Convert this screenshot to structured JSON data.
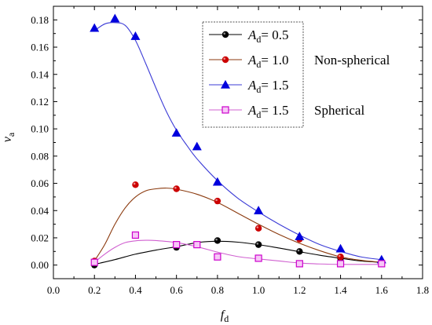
{
  "chart_data": {
    "type": "scatter",
    "title": "",
    "xlabel": {
      "main": "f",
      "sub": "d"
    },
    "ylabel": {
      "main": "v",
      "sub": "a"
    },
    "xlim": [
      0.0,
      1.8
    ],
    "ylim": [
      -0.01,
      0.19
    ],
    "x_ticks": [
      "0.0",
      "0.2",
      "0.4",
      "0.6",
      "0.8",
      "1.0",
      "1.2",
      "1.4",
      "1.6",
      "1.8"
    ],
    "y_ticks": [
      "0.00",
      "0.02",
      "0.04",
      "0.06",
      "0.08",
      "0.10",
      "0.12",
      "0.14",
      "0.16",
      "0.18"
    ],
    "grid": false,
    "legend_position": "top-right",
    "series": [
      {
        "name": "A_d = 0.5",
        "legend_var": "A",
        "legend_sub": "d",
        "legend_value": "= 0.5",
        "marker": "circle",
        "color": "#000000",
        "marker_fill": "#000000",
        "line_color": "#000000",
        "x": [
          0.2,
          0.6,
          0.8,
          1.0,
          1.2,
          1.4,
          1.6
        ],
        "y": [
          0.0,
          0.013,
          0.018,
          0.015,
          0.01,
          0.005,
          0.002
        ],
        "curve": [
          [
            0.2,
            0.0005
          ],
          [
            0.3,
            0.004
          ],
          [
            0.4,
            0.008
          ],
          [
            0.5,
            0.011
          ],
          [
            0.6,
            0.0135
          ],
          [
            0.7,
            0.0165
          ],
          [
            0.8,
            0.0175
          ],
          [
            0.9,
            0.0168
          ],
          [
            1.0,
            0.015
          ],
          [
            1.1,
            0.0125
          ],
          [
            1.2,
            0.0098
          ],
          [
            1.3,
            0.0072
          ],
          [
            1.4,
            0.005
          ],
          [
            1.5,
            0.003
          ],
          [
            1.6,
            0.002
          ]
        ]
      },
      {
        "name": "A_d = 1.0",
        "legend_var": "A",
        "legend_sub": "d",
        "legend_value": "= 1.0",
        "group_label": "Non-spherical",
        "marker": "circle",
        "color": "#cc0000",
        "marker_fill": "#cc0000",
        "line_color": "#8b3a0e",
        "x": [
          0.2,
          0.4,
          0.6,
          0.8,
          1.0,
          1.2,
          1.4,
          1.6
        ],
        "y": [
          0.003,
          0.059,
          0.056,
          0.047,
          0.027,
          0.019,
          0.006,
          0.002
        ],
        "curve": [
          [
            0.2,
            0.003
          ],
          [
            0.25,
            0.015
          ],
          [
            0.3,
            0.03
          ],
          [
            0.35,
            0.042
          ],
          [
            0.4,
            0.05
          ],
          [
            0.45,
            0.0545
          ],
          [
            0.5,
            0.056
          ],
          [
            0.55,
            0.0565
          ],
          [
            0.6,
            0.0557
          ],
          [
            0.7,
            0.052
          ],
          [
            0.8,
            0.046
          ],
          [
            0.9,
            0.038
          ],
          [
            1.0,
            0.03
          ],
          [
            1.1,
            0.0225
          ],
          [
            1.2,
            0.016
          ],
          [
            1.3,
            0.0105
          ],
          [
            1.4,
            0.006
          ],
          [
            1.5,
            0.0035
          ],
          [
            1.6,
            0.002
          ]
        ]
      },
      {
        "name": "A_d = 1.5",
        "legend_var": "A",
        "legend_sub": "d",
        "legend_value": "= 1.5",
        "marker": "triangle",
        "color": "#0000dd",
        "marker_fill": "#0000dd",
        "line_color": "#3b3bd6",
        "x": [
          0.2,
          0.3,
          0.4,
          0.6,
          0.7,
          0.8,
          1.0,
          1.2,
          1.4,
          1.6
        ],
        "y": [
          0.174,
          0.181,
          0.168,
          0.097,
          0.087,
          0.061,
          0.04,
          0.021,
          0.012,
          0.004
        ],
        "curve": [
          [
            0.2,
            0.172
          ],
          [
            0.25,
            0.177
          ],
          [
            0.3,
            0.178
          ],
          [
            0.35,
            0.176
          ],
          [
            0.4,
            0.165
          ],
          [
            0.45,
            0.148
          ],
          [
            0.5,
            0.13
          ],
          [
            0.55,
            0.113
          ],
          [
            0.6,
            0.099
          ],
          [
            0.65,
            0.088
          ],
          [
            0.7,
            0.078
          ],
          [
            0.8,
            0.062
          ],
          [
            0.9,
            0.049
          ],
          [
            1.0,
            0.039
          ],
          [
            1.1,
            0.03
          ],
          [
            1.2,
            0.022
          ],
          [
            1.3,
            0.015
          ],
          [
            1.4,
            0.01
          ],
          [
            1.5,
            0.006
          ],
          [
            1.6,
            0.004
          ]
        ]
      },
      {
        "name": "A_d = 1.5 Spherical",
        "legend_var": "A",
        "legend_sub": "d",
        "legend_value": "= 1.5",
        "group_label": "Spherical",
        "marker": "square",
        "color": "#cc00cc",
        "marker_fill": "#f7c6f7",
        "line_color": "#d060d0",
        "x": [
          0.2,
          0.4,
          0.6,
          0.7,
          0.8,
          1.0,
          1.2,
          1.4,
          1.6
        ],
        "y": [
          0.002,
          0.022,
          0.015,
          0.015,
          0.006,
          0.005,
          0.001,
          0.001,
          0.001
        ],
        "curve": [
          [
            0.2,
            0.002
          ],
          [
            0.25,
            0.008
          ],
          [
            0.3,
            0.013
          ],
          [
            0.35,
            0.0165
          ],
          [
            0.4,
            0.0178
          ],
          [
            0.45,
            0.0182
          ],
          [
            0.5,
            0.018
          ],
          [
            0.6,
            0.0165
          ],
          [
            0.7,
            0.0135
          ],
          [
            0.8,
            0.0095
          ],
          [
            0.9,
            0.0062
          ],
          [
            1.0,
            0.0045
          ],
          [
            1.1,
            0.003
          ],
          [
            1.2,
            0.0015
          ],
          [
            1.3,
            0.0008
          ],
          [
            1.4,
            0.0005
          ],
          [
            1.5,
            0.0005
          ],
          [
            1.6,
            0.0005
          ]
        ]
      }
    ]
  }
}
